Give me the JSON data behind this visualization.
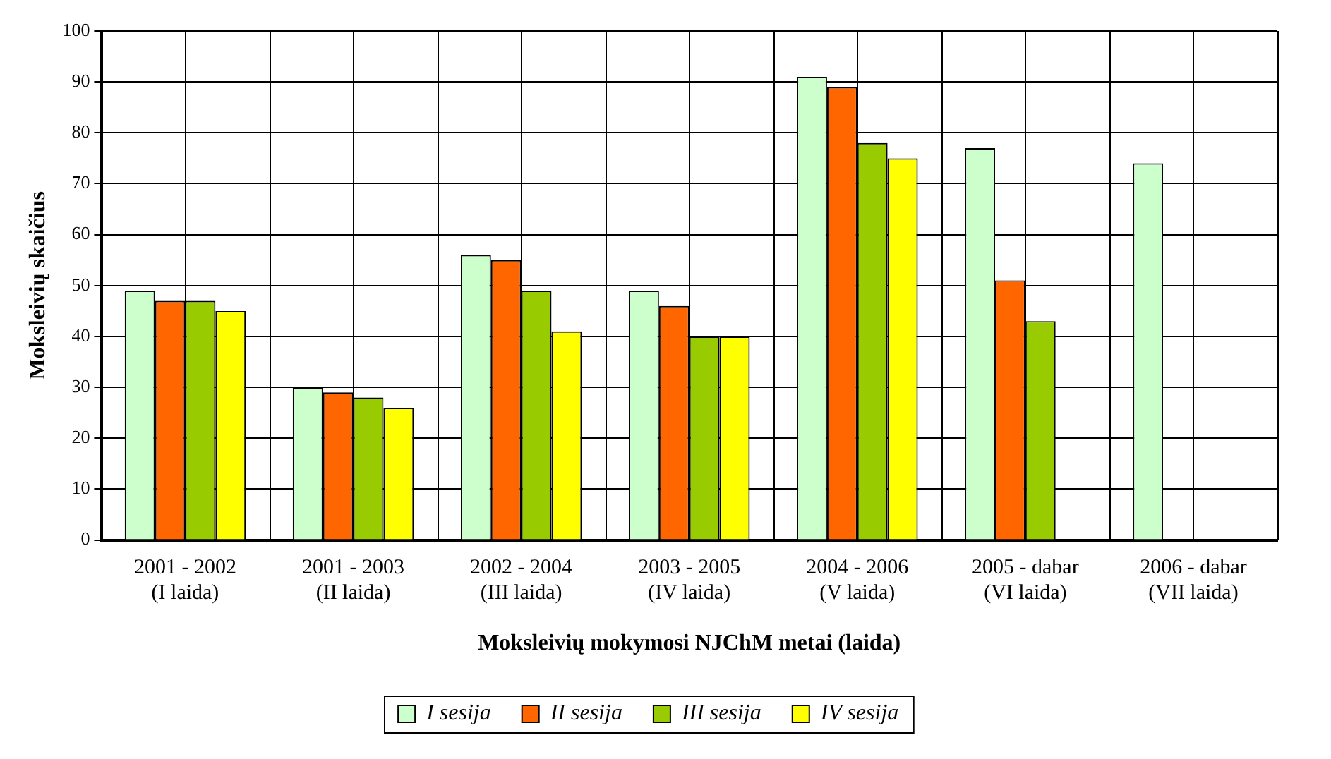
{
  "chart_data": {
    "type": "bar",
    "xlabel": "Moksleivių mokymosi NJChM metai (laida)",
    "ylabel": "Moksleivių skaičius",
    "categories": [
      "2001 - 2002\n(I laida)",
      "2001 - 2003\n(II laida)",
      "2002 - 2004\n(III laida)",
      "2003 - 2005\n(IV laida)",
      "2004 - 2006\n(V laida)",
      "2005 - dabar\n(VI laida)",
      "2006 - dabar\n(VII laida)"
    ],
    "series": [
      {
        "name": "I sesija",
        "color": "#ccffcc",
        "values": [
          49,
          30,
          56,
          49,
          91,
          77,
          74
        ]
      },
      {
        "name": "II sesija",
        "color": "#ff6600",
        "values": [
          47,
          29,
          55,
          46,
          89,
          51,
          null
        ]
      },
      {
        "name": "III sesija",
        "color": "#99cc00",
        "values": [
          47,
          28,
          49,
          40,
          78,
          43,
          null
        ]
      },
      {
        "name": "IV sesija",
        "color": "#ffff00",
        "values": [
          45,
          26,
          41,
          40,
          75,
          null,
          null
        ]
      }
    ],
    "ylim": [
      0,
      100
    ],
    "yticks": [
      0,
      10,
      20,
      30,
      40,
      50,
      60,
      70,
      80,
      90,
      100
    ],
    "grid": true,
    "legend": "bottom"
  }
}
